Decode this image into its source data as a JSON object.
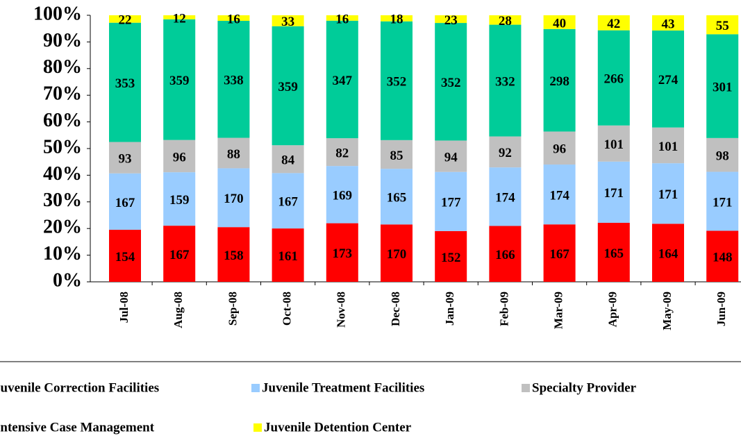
{
  "chart_data": {
    "type": "bar",
    "stacking": "percent",
    "categories": [
      "Jul-08",
      "Aug-08",
      "Sep-08",
      "Oct-08",
      "Nov-08",
      "Dec-08",
      "Jan-09",
      "Feb-09",
      "Mar-09",
      "Apr-09",
      "May-09",
      "Jun-09"
    ],
    "series": [
      {
        "name": "Juvenile Correction Facilities",
        "color": "#ff0000",
        "values": [
          154,
          167,
          158,
          161,
          173,
          170,
          152,
          166,
          167,
          165,
          164,
          148
        ]
      },
      {
        "name": "Juvenile Treatment Facilities",
        "color": "#99ccff",
        "values": [
          167,
          159,
          170,
          167,
          169,
          165,
          177,
          174,
          174,
          171,
          171,
          171
        ]
      },
      {
        "name": "Specialty Provider",
        "color": "#c0c0c0",
        "values": [
          93,
          96,
          88,
          84,
          82,
          85,
          94,
          92,
          96,
          101,
          101,
          98
        ]
      },
      {
        "name": "Intensive Case Management",
        "color": "#00cc99",
        "values": [
          353,
          359,
          338,
          359,
          347,
          352,
          352,
          332,
          298,
          266,
          274,
          301
        ]
      },
      {
        "name": "Juvenile Detention Center",
        "color": "#ffff00",
        "values": [
          22,
          12,
          16,
          33,
          16,
          18,
          23,
          28,
          40,
          42,
          43,
          55
        ]
      }
    ],
    "ylim": [
      0,
      100
    ],
    "yticks": [
      {
        "value": 0,
        "label": "0%"
      },
      {
        "value": 10,
        "label": "10%"
      },
      {
        "value": 20,
        "label": "20%"
      },
      {
        "value": 30,
        "label": "30%"
      },
      {
        "value": 40,
        "label": "40%"
      },
      {
        "value": 50,
        "label": "50%"
      },
      {
        "value": 60,
        "label": "60%"
      },
      {
        "value": 70,
        "label": "70%"
      },
      {
        "value": 80,
        "label": "80%"
      },
      {
        "value": 90,
        "label": "90%"
      },
      {
        "value": 100,
        "label": "100%"
      }
    ]
  }
}
